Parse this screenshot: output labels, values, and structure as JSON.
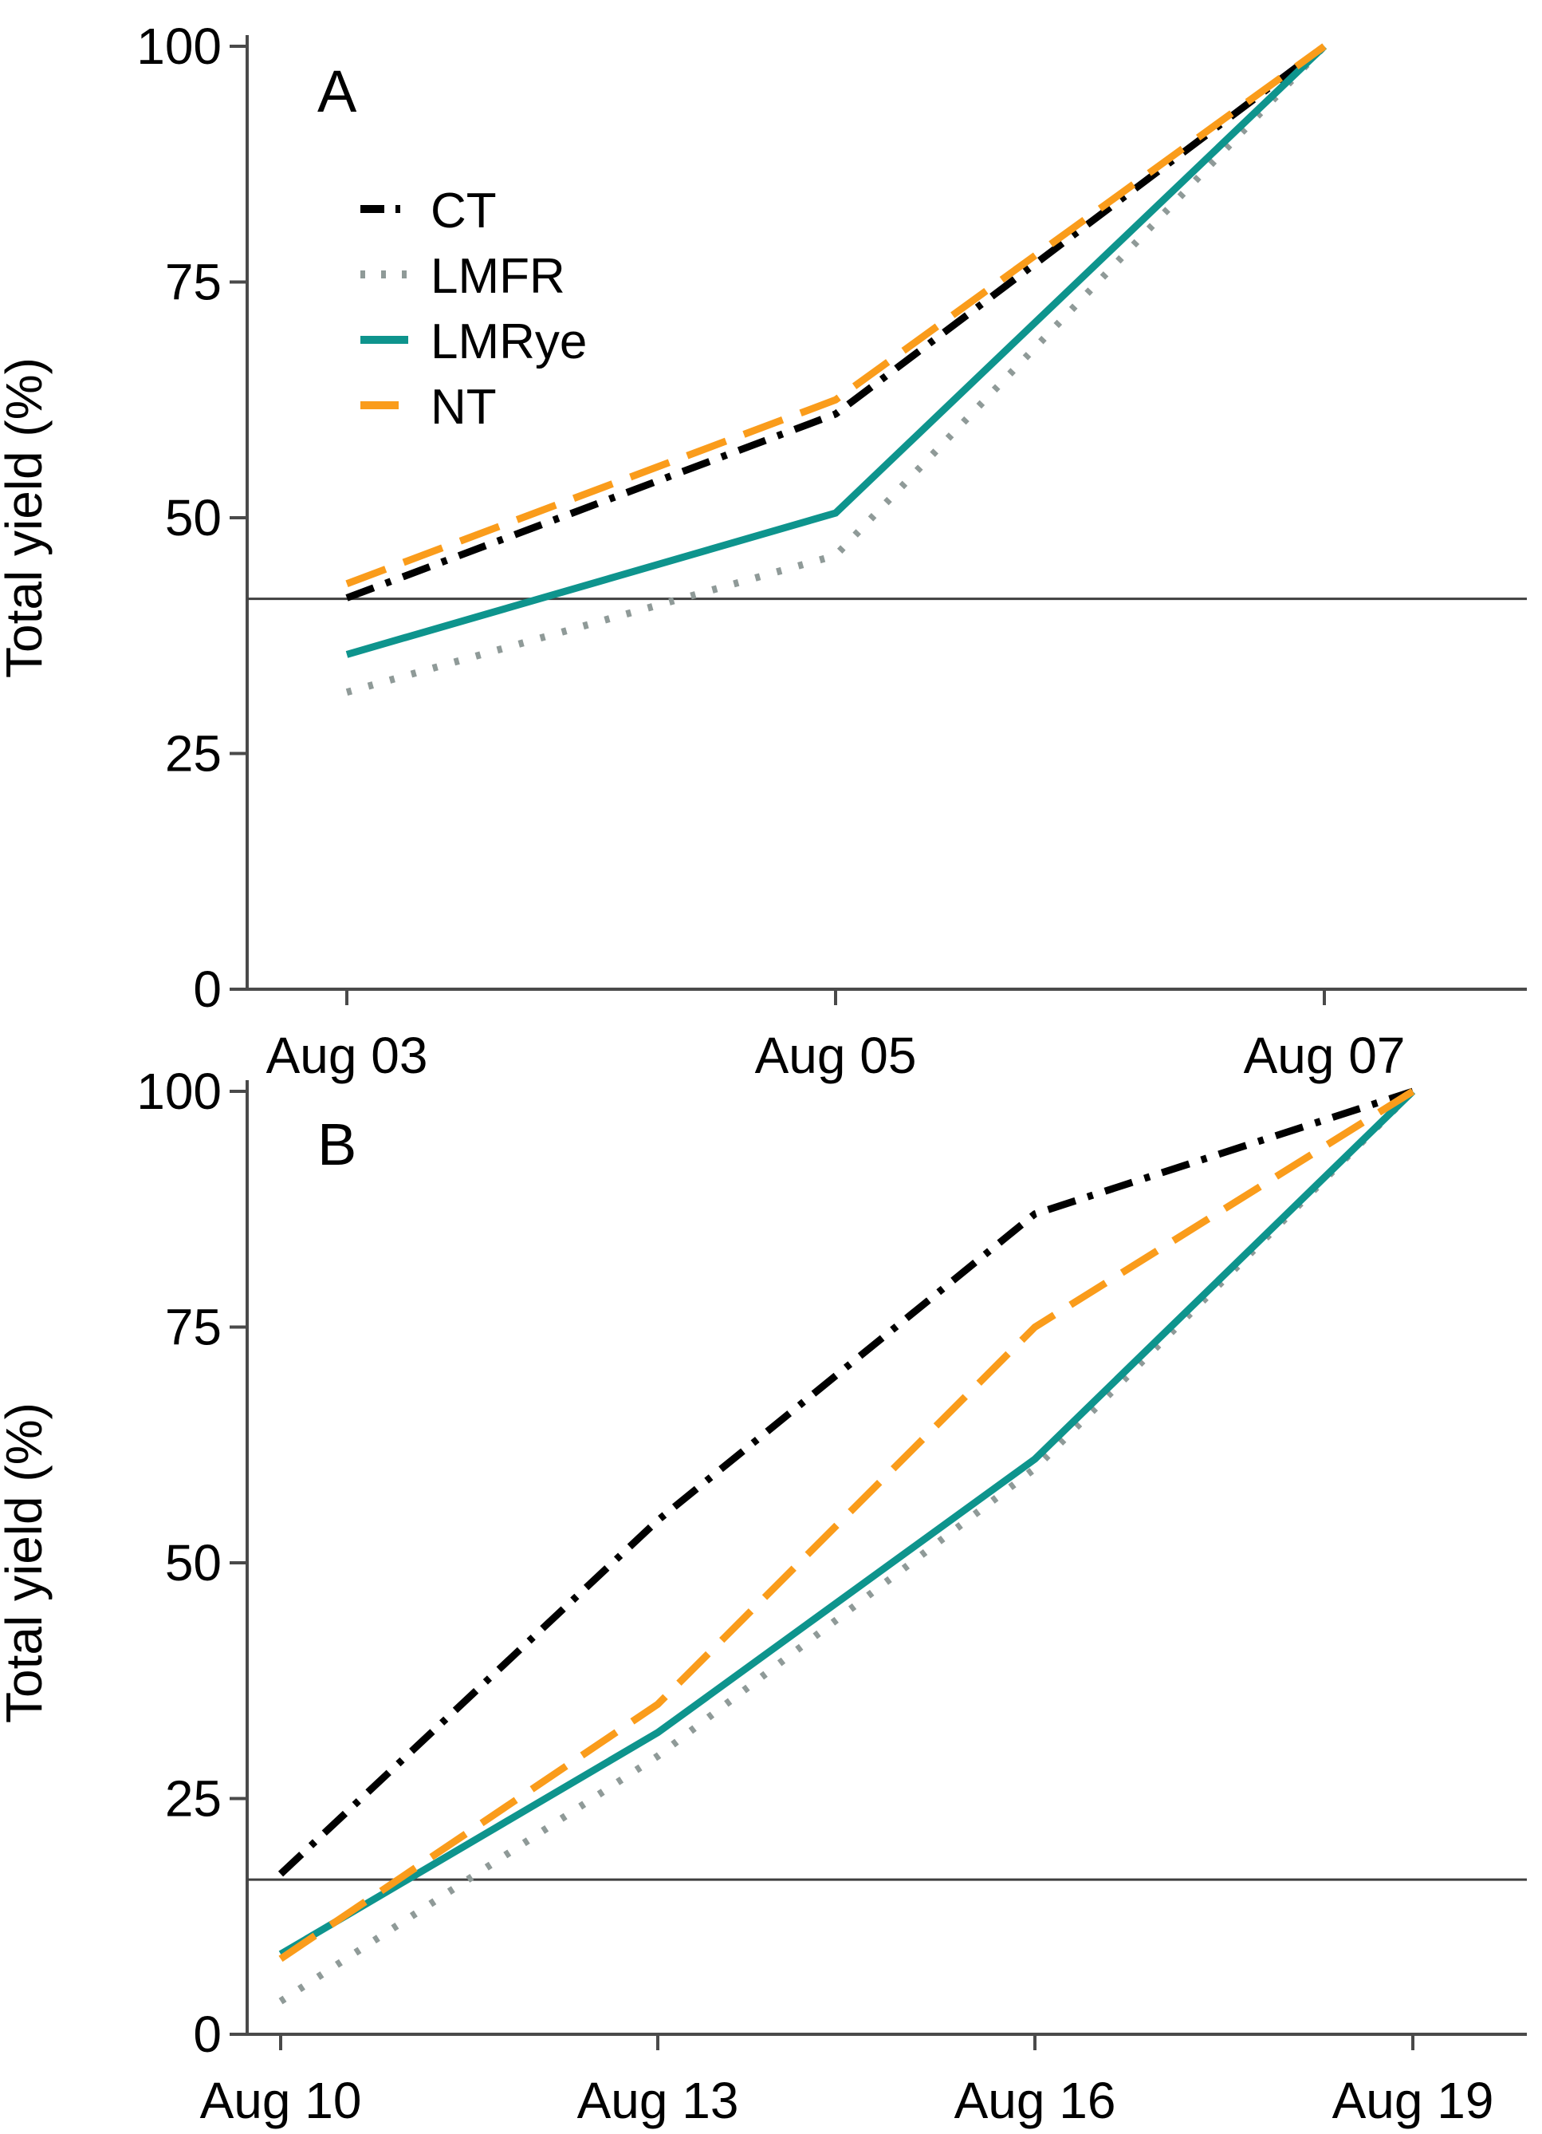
{
  "figure": {
    "background": "#ffffff",
    "y_axis_label": "Total yield (%)",
    "axis_color": "#4a4a4a",
    "reference_line_color": "#3f3f3f",
    "legend_position": "top-left-inside-panel-A",
    "series_styles": [
      {
        "name": "CT",
        "color": "#000000",
        "dash": "dashdot"
      },
      {
        "name": "LMFR",
        "color": "#8f9a98",
        "dash": "dotted"
      },
      {
        "name": "LMRye",
        "color": "#0e948d",
        "dash": "solid"
      },
      {
        "name": "NT",
        "color": "#fa9c1b",
        "dash": "dashed"
      }
    ]
  },
  "chart_data": [
    {
      "type": "line",
      "panel": "A",
      "ylabel": "Total yield (%)",
      "ylim": [
        0,
        100
      ],
      "yticks": [
        0,
        25,
        50,
        75,
        100
      ],
      "grid": false,
      "legend_visible": true,
      "categories": [
        "Aug 03",
        "Aug 05",
        "Aug 07"
      ],
      "reference_line": 41.4,
      "series": [
        {
          "name": "CT",
          "values": [
            41.5,
            61,
            100
          ]
        },
        {
          "name": "LMFR",
          "values": [
            31.5,
            46,
            100
          ]
        },
        {
          "name": "LMRye",
          "values": [
            35.5,
            50.5,
            100
          ]
        },
        {
          "name": "NT",
          "values": [
            43,
            62.5,
            100
          ]
        }
      ]
    },
    {
      "type": "line",
      "panel": "B",
      "ylabel": "Total yield (%)",
      "ylim": [
        0,
        100
      ],
      "yticks": [
        0,
        25,
        50,
        75,
        100
      ],
      "grid": false,
      "legend_visible": false,
      "categories": [
        "Aug 10",
        "Aug 13",
        "Aug 16",
        "Aug 19"
      ],
      "reference_line": 16.4,
      "series": [
        {
          "name": "CT",
          "values": [
            17,
            54.5,
            87,
            100
          ]
        },
        {
          "name": "LMFR",
          "values": [
            3.5,
            29.5,
            60,
            100
          ]
        },
        {
          "name": "LMRye",
          "values": [
            8.5,
            32,
            61,
            100
          ]
        },
        {
          "name": "NT",
          "values": [
            8,
            35,
            75,
            100
          ]
        }
      ]
    }
  ]
}
